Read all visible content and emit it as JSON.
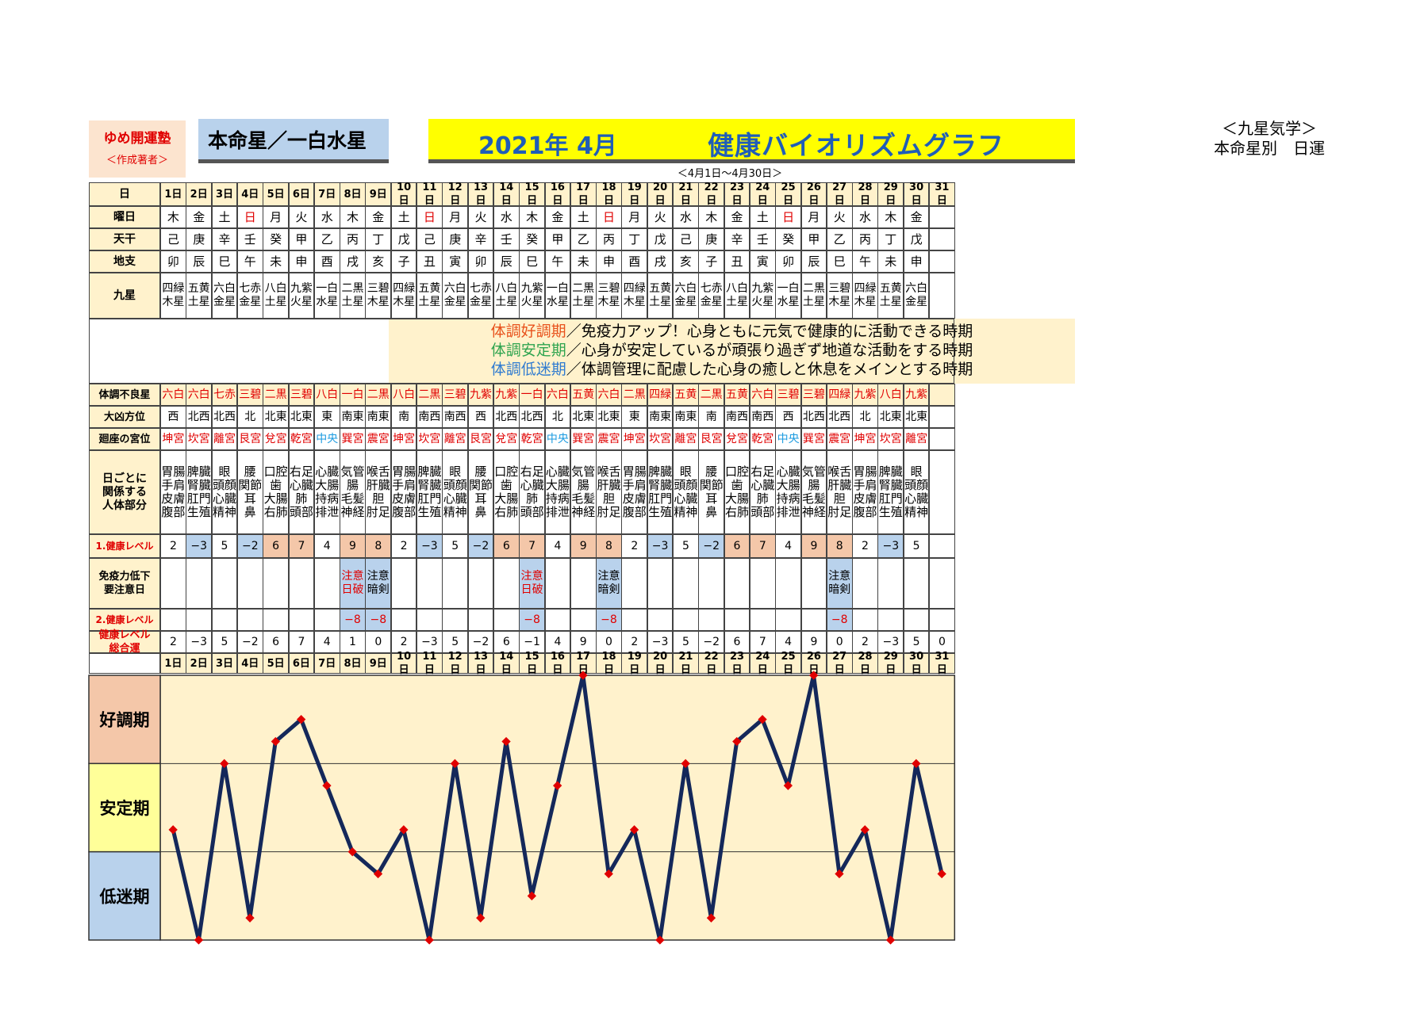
{
  "header": {
    "brand": "ゆめ開運塾",
    "brand_sub": "＜作成著者＞",
    "star_label": "本命星／一白水星",
    "title_year": "2021年 4月",
    "title_main": "健康バイオリズムグラフ",
    "period": "＜4月1日～4月30日＞",
    "right_line1": "＜九星気学＞",
    "right_line2": "本命星別　日運"
  },
  "row_labels": {
    "day": "日",
    "weekday": "曜日",
    "tenkan": "天干",
    "chishi": "地支",
    "kyusei": "九星",
    "bad_star": "体調不良星",
    "bad_dir": "大凶方位",
    "palace": "廻座の宮位",
    "body": [
      "日ごとに",
      "関係する",
      "人体部分"
    ],
    "health1": "1.健康レベル",
    "immune": [
      "免疫力低下",
      "要注意日"
    ],
    "health2": "2.健康レベル",
    "total": [
      "健康レベル",
      "総合運"
    ]
  },
  "days": [
    "1日",
    "2日",
    "3日",
    "4日",
    "5日",
    "6日",
    "7日",
    "8日",
    "9日",
    "10日",
    "11日",
    "12日",
    "13日",
    "14日",
    "15日",
    "16日",
    "17日",
    "18日",
    "19日",
    "20日",
    "21日",
    "22日",
    "23日",
    "24日",
    "25日",
    "26日",
    "27日",
    "28日",
    "29日",
    "30日",
    "31日"
  ],
  "weekdays": [
    "木",
    "金",
    "土",
    "日",
    "月",
    "火",
    "水",
    "木",
    "金",
    "土",
    "日",
    "月",
    "火",
    "水",
    "木",
    "金",
    "土",
    "日",
    "月",
    "火",
    "水",
    "木",
    "金",
    "土",
    "日",
    "月",
    "火",
    "水",
    "木",
    "金",
    ""
  ],
  "tenkan": [
    "己",
    "庚",
    "辛",
    "壬",
    "癸",
    "甲",
    "乙",
    "丙",
    "丁",
    "戊",
    "己",
    "庚",
    "辛",
    "壬",
    "癸",
    "甲",
    "乙",
    "丙",
    "丁",
    "戊",
    "己",
    "庚",
    "辛",
    "壬",
    "癸",
    "甲",
    "乙",
    "丙",
    "丁",
    "戊",
    ""
  ],
  "chishi": [
    "卯",
    "辰",
    "巳",
    "午",
    "未",
    "申",
    "酉",
    "戌",
    "亥",
    "子",
    "丑",
    "寅",
    "卯",
    "辰",
    "巳",
    "午",
    "未",
    "申",
    "酉",
    "戌",
    "亥",
    "子",
    "丑",
    "寅",
    "卯",
    "辰",
    "巳",
    "午",
    "未",
    "申",
    ""
  ],
  "kyusei": [
    [
      "四緑",
      "木星"
    ],
    [
      "五黄",
      "土星"
    ],
    [
      "六白",
      "金星"
    ],
    [
      "七赤",
      "金星"
    ],
    [
      "八白",
      "土星"
    ],
    [
      "九紫",
      "火星"
    ],
    [
      "一白",
      "水星"
    ],
    [
      "二黒",
      "土星"
    ],
    [
      "三碧",
      "木星"
    ],
    [
      "四緑",
      "木星"
    ],
    [
      "五黄",
      "土星"
    ],
    [
      "六白",
      "金星"
    ],
    [
      "七赤",
      "金星"
    ],
    [
      "八白",
      "土星"
    ],
    [
      "九紫",
      "火星"
    ],
    [
      "一白",
      "水星"
    ],
    [
      "二黒",
      "土星"
    ],
    [
      "三碧",
      "木星"
    ],
    [
      "四緑",
      "木星"
    ],
    [
      "五黄",
      "土星"
    ],
    [
      "六白",
      "金星"
    ],
    [
      "七赤",
      "金星"
    ],
    [
      "八白",
      "土星"
    ],
    [
      "九紫",
      "火星"
    ],
    [
      "一白",
      "水星"
    ],
    [
      "二黒",
      "土星"
    ],
    [
      "三碧",
      "木星"
    ],
    [
      "四緑",
      "木星"
    ],
    [
      "五黄",
      "土星"
    ],
    [
      "六白",
      "金星"
    ],
    [
      "",
      ""
    ]
  ],
  "message": {
    "l1_head": "体調好調期",
    "l1_body": "／免疫力アップ！心身ともに元気で健康的に活動できる時期",
    "l2_head": "体調安定期",
    "l2_body": "／心身が安定しているが頑張り過ぎず地道な活動をする時期",
    "l3_head": "体調低迷期",
    "l3_body": "／体調管理に配慮した心身の癒しと休息をメインとする時期"
  },
  "bad_star": [
    "六白",
    "六白",
    "七赤",
    "三碧",
    "二黒",
    "三碧",
    "八白",
    "一白",
    "二黒",
    "八白",
    "二黒",
    "三碧",
    "九紫",
    "九紫",
    "一白",
    "六白",
    "五黄",
    "六白",
    "二黒",
    "四緑",
    "五黄",
    "二黒",
    "五黄",
    "六白",
    "三碧",
    "三碧",
    "四緑",
    "九紫",
    "八白",
    "九紫",
    ""
  ],
  "bad_dir": [
    "西",
    "北西",
    "北西",
    "北",
    "北東",
    "北東",
    "東",
    "南東",
    "南東",
    "南",
    "南西",
    "南西",
    "西",
    "北西",
    "北西",
    "北",
    "北東",
    "北東",
    "東",
    "南東",
    "南東",
    "南",
    "南西",
    "南西",
    "西",
    "北西",
    "北西",
    "北",
    "北東",
    "北東",
    ""
  ],
  "palace": [
    "坤宮",
    "坎宮",
    "離宮",
    "艮宮",
    "兌宮",
    "乾宮",
    "中央",
    "巽宮",
    "震宮",
    "坤宮",
    "坎宮",
    "離宮",
    "艮宮",
    "兌宮",
    "乾宮",
    "中央",
    "巽宮",
    "震宮",
    "坤宮",
    "坎宮",
    "離宮",
    "艮宮",
    "兌宮",
    "乾宮",
    "中央",
    "巽宮",
    "震宮",
    "坤宮",
    "坎宮",
    "離宮",
    ""
  ],
  "body": [
    [
      "胃腸",
      "手肩",
      "皮膚",
      "腹部"
    ],
    [
      "脾臓",
      "腎臓",
      "肛門",
      "生殖"
    ],
    [
      "眼",
      "頭顔",
      "心臓",
      "精神"
    ],
    [
      "腰",
      "関節",
      "耳",
      "鼻"
    ],
    [
      "口腔",
      "歯",
      "大腸",
      "右肺"
    ],
    [
      "右足",
      "心臓",
      "肺",
      "頭部"
    ],
    [
      "心臓",
      "大腸",
      "持病",
      "排泄"
    ],
    [
      "気管",
      "腸",
      "毛髪",
      "神経"
    ],
    [
      "喉舌",
      "肝臓",
      "胆",
      "肘足"
    ],
    [
      "胃腸",
      "手肩",
      "皮膚",
      "腹部"
    ],
    [
      "脾臓",
      "腎臓",
      "肛門",
      "生殖"
    ],
    [
      "眼",
      "頭顔",
      "心臓",
      "精神"
    ],
    [
      "腰",
      "関節",
      "耳",
      "鼻"
    ],
    [
      "口腔",
      "歯",
      "大腸",
      "右肺"
    ],
    [
      "右足",
      "心臓",
      "肺",
      "頭部"
    ],
    [
      "心臓",
      "大腸",
      "持病",
      "排泄"
    ],
    [
      "気管",
      "腸",
      "毛髪",
      "神経"
    ],
    [
      "喉舌",
      "肝臓",
      "胆",
      "肘足"
    ],
    [
      "胃腸",
      "手肩",
      "皮膚",
      "腹部"
    ],
    [
      "脾臓",
      "腎臓",
      "肛門",
      "生殖"
    ],
    [
      "眼",
      "頭顔",
      "心臓",
      "精神"
    ],
    [
      "腰",
      "関節",
      "耳",
      "鼻"
    ],
    [
      "口腔",
      "歯",
      "大腸",
      "右肺"
    ],
    [
      "右足",
      "心臓",
      "肺",
      "頭部"
    ],
    [
      "心臓",
      "大腸",
      "持病",
      "排泄"
    ],
    [
      "気管",
      "腸",
      "毛髪",
      "神経"
    ],
    [
      "喉舌",
      "肝臓",
      "胆",
      "肘足"
    ],
    [
      "胃腸",
      "手肩",
      "皮膚",
      "腹部"
    ],
    [
      "脾臓",
      "腎臓",
      "肛門",
      "生殖"
    ],
    [
      "眼",
      "頭顔",
      "心臓",
      "精神"
    ],
    [
      "",
      "",
      "",
      ""
    ]
  ],
  "health1": [
    "2",
    "−3",
    "5",
    "−2",
    "6",
    "7",
    "4",
    "9",
    "8",
    "2",
    "−3",
    "5",
    "−2",
    "6",
    "7",
    "4",
    "9",
    "8",
    "2",
    "−3",
    "5",
    "−2",
    "6",
    "7",
    "4",
    "9",
    "8",
    "2",
    "−3",
    "5",
    ""
  ],
  "immune": [
    [
      "",
      ""
    ],
    [
      "",
      ""
    ],
    [
      "",
      ""
    ],
    [
      "",
      ""
    ],
    [
      "",
      ""
    ],
    [
      "",
      ""
    ],
    [
      "",
      ""
    ],
    [
      "注意",
      "日破"
    ],
    [
      "注意",
      "暗剣"
    ],
    [
      "",
      ""
    ],
    [
      "",
      ""
    ],
    [
      "",
      ""
    ],
    [
      "",
      ""
    ],
    [
      "",
      ""
    ],
    [
      "注意",
      "日破"
    ],
    [
      "",
      ""
    ],
    [
      "",
      ""
    ],
    [
      "注意",
      "暗剣"
    ],
    [
      "",
      ""
    ],
    [
      "",
      ""
    ],
    [
      "",
      ""
    ],
    [
      "",
      ""
    ],
    [
      "",
      ""
    ],
    [
      "",
      ""
    ],
    [
      "",
      ""
    ],
    [
      "",
      ""
    ],
    [
      "注意",
      "暗剣"
    ],
    [
      "",
      ""
    ],
    [
      "",
      ""
    ],
    [
      "",
      ""
    ],
    [
      "",
      ""
    ]
  ],
  "health2": [
    "",
    "",
    "",
    "",
    "",
    "",
    "",
    "−8",
    "−8",
    "",
    "",
    "",
    "",
    "",
    "−8",
    "",
    "",
    "−8",
    "",
    "",
    "",
    "",
    "",
    "",
    "",
    "",
    "−8",
    "",
    "",
    "",
    ""
  ],
  "total": [
    "2",
    "−3",
    "5",
    "−2",
    "6",
    "7",
    "4",
    "1",
    "0",
    "2",
    "−3",
    "5",
    "−2",
    "6",
    "−1",
    "4",
    "9",
    "0",
    "2",
    "−3",
    "5",
    "−2",
    "6",
    "7",
    "4",
    "9",
    "0",
    "2",
    "−3",
    "5",
    "0"
  ],
  "zones": {
    "good": "好調期",
    "stable": "安定期",
    "low": "低迷期"
  },
  "colors": {
    "good_bg": "#f4c7a9",
    "stable_bg": "#ffff99",
    "low_bg": "#b9d2ec",
    "plot_bg": "#fff2cc",
    "line": "#14285a",
    "marker": "#e00000",
    "header_bg": "#fff2cc"
  },
  "chart_data": {
    "type": "line",
    "x": [
      "1日",
      "2日",
      "3日",
      "4日",
      "5日",
      "6日",
      "7日",
      "8日",
      "9日",
      "10日",
      "11日",
      "12日",
      "13日",
      "14日",
      "15日",
      "16日",
      "17日",
      "18日",
      "19日",
      "20日",
      "21日",
      "22日",
      "23日",
      "24日",
      "25日",
      "26日",
      "27日",
      "28日",
      "29日",
      "30日",
      "31日"
    ],
    "series": [
      {
        "values": [
          2,
          -3,
          5,
          -2,
          6,
          7,
          4,
          1,
          0,
          2,
          -3,
          5,
          -2,
          6,
          -1,
          4,
          9,
          0,
          2,
          -3,
          5,
          -2,
          6,
          7,
          4,
          9,
          0,
          2,
          -3,
          5,
          0
        ]
      }
    ],
    "ylim": [
      -3,
      9
    ],
    "bands": [
      "好調期",
      "安定期",
      "低迷期"
    ]
  }
}
